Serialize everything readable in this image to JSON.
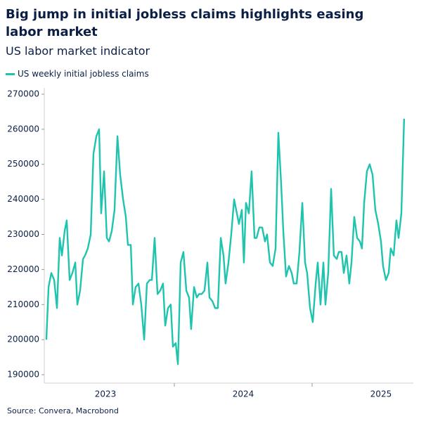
{
  "chart_data": {
    "type": "line",
    "title": "Big jump in initial jobless claims highlights easing labor market",
    "subtitle": "US labor market indicator",
    "source": "Source: Convera, Macrobond",
    "legend": "top-left",
    "x": [
      2023.071,
      2023.087,
      2023.107,
      2023.128,
      2023.148,
      2023.168,
      2023.184,
      2023.204,
      2023.219,
      2023.24,
      2023.26,
      2023.281,
      2023.296,
      2023.316,
      2023.337,
      2023.352,
      2023.372,
      2023.393,
      2023.413,
      2023.434,
      2023.454,
      2023.469,
      2023.49,
      2023.51,
      2023.526,
      2023.546,
      2023.566,
      2023.587,
      2023.607,
      2023.628,
      2023.648,
      2023.663,
      2023.684,
      2023.699,
      2023.719,
      2023.74,
      2023.76,
      2023.781,
      2023.801,
      2023.821,
      2023.837,
      2023.857,
      2023.878,
      2023.898,
      2023.918,
      2023.934,
      2023.954,
      2023.974,
      2023.99,
      2024.01,
      2024.026,
      2024.046,
      2024.066,
      2024.087,
      2024.107,
      2024.122,
      2024.143,
      2024.163,
      2024.179,
      2024.199,
      2024.219,
      2024.24,
      2024.255,
      2024.276,
      2024.296,
      2024.316,
      2024.337,
      2024.357,
      2024.372,
      2024.393,
      2024.413,
      2024.434,
      2024.454,
      2024.469,
      2024.49,
      2024.505,
      2024.52,
      2024.541,
      2024.561,
      2024.582,
      2024.597,
      2024.617,
      2024.638,
      2024.658,
      2024.673,
      2024.694,
      2024.714,
      2024.735,
      2024.755,
      2024.776,
      2024.791,
      2024.811,
      2024.832,
      2024.852,
      2024.867,
      2024.888,
      2024.908,
      2024.929,
      2024.949,
      2024.964,
      2024.985,
      2025.005,
      2025.026,
      2025.041,
      2025.061,
      2025.082,
      2025.097,
      2025.117,
      2025.138,
      2025.158,
      2025.179,
      2025.194,
      2025.214,
      2025.23,
      2025.25,
      2025.27,
      2025.286,
      2025.306,
      2025.327,
      2025.347,
      2025.362,
      2025.378,
      2025.398,
      2025.418,
      2025.439,
      2025.459,
      2025.48,
      2025.5,
      2025.515,
      2025.536,
      2025.556,
      2025.571,
      2025.592,
      2025.612,
      2025.628,
      2025.648,
      2025.668
    ],
    "series": [
      {
        "name": "US weekly initial jobless claims",
        "color": "#1fc4ae",
        "values": [
          200000,
          215000,
          219000,
          217000,
          209000,
          229000,
          224000,
          231000,
          234000,
          217000,
          219000,
          222000,
          210000,
          214000,
          223000,
          224000,
          226000,
          230000,
          253000,
          258000,
          260000,
          236000,
          248000,
          229000,
          228000,
          231000,
          237000,
          258000,
          247000,
          240000,
          235000,
          227000,
          227000,
          210000,
          215000,
          216000,
          210000,
          200000,
          216000,
          217000,
          217000,
          229000,
          213000,
          214000,
          216000,
          204000,
          209000,
          210000,
          198000,
          199000,
          193000,
          222000,
          225000,
          214000,
          212000,
          203000,
          215000,
          212000,
          213000,
          213000,
          214000,
          222000,
          212000,
          211000,
          209000,
          209000,
          229000,
          224000,
          216000,
          222000,
          230000,
          240000,
          236000,
          233000,
          237000,
          222000,
          239000,
          236000,
          248000,
          229000,
          229000,
          232000,
          232000,
          228000,
          230000,
          222000,
          221000,
          226000,
          259000,
          244000,
          231000,
          218000,
          221000,
          219000,
          216000,
          216000,
          225000,
          239000,
          222000,
          219000,
          209000,
          205000,
          216000,
          222000,
          210000,
          222000,
          210000,
          219000,
          243000,
          224000,
          223000,
          225000,
          225000,
          219000,
          224000,
          216000,
          222000,
          235000,
          229000,
          228000,
          226000,
          239000,
          248000,
          250000,
          247000,
          237000,
          233000,
          228000,
          221000,
          217000,
          219000,
          226000,
          224000,
          234000,
          229000,
          236000,
          263000
        ]
      }
    ],
    "xlim": [
      2023.056,
      2025.735
    ],
    "xticks": [
      {
        "value": 2023.5,
        "label": "2023"
      },
      {
        "value": 2024.5,
        "label": "2024"
      },
      {
        "value": 2025.5,
        "label": "2025"
      }
    ],
    "xminor_ticks": [
      2024,
      2025
    ],
    "ylim": [
      187600,
      271800
    ],
    "yticks": [
      190000,
      200000,
      210000,
      220000,
      230000,
      240000,
      250000,
      260000,
      270000
    ],
    "grid": false
  }
}
